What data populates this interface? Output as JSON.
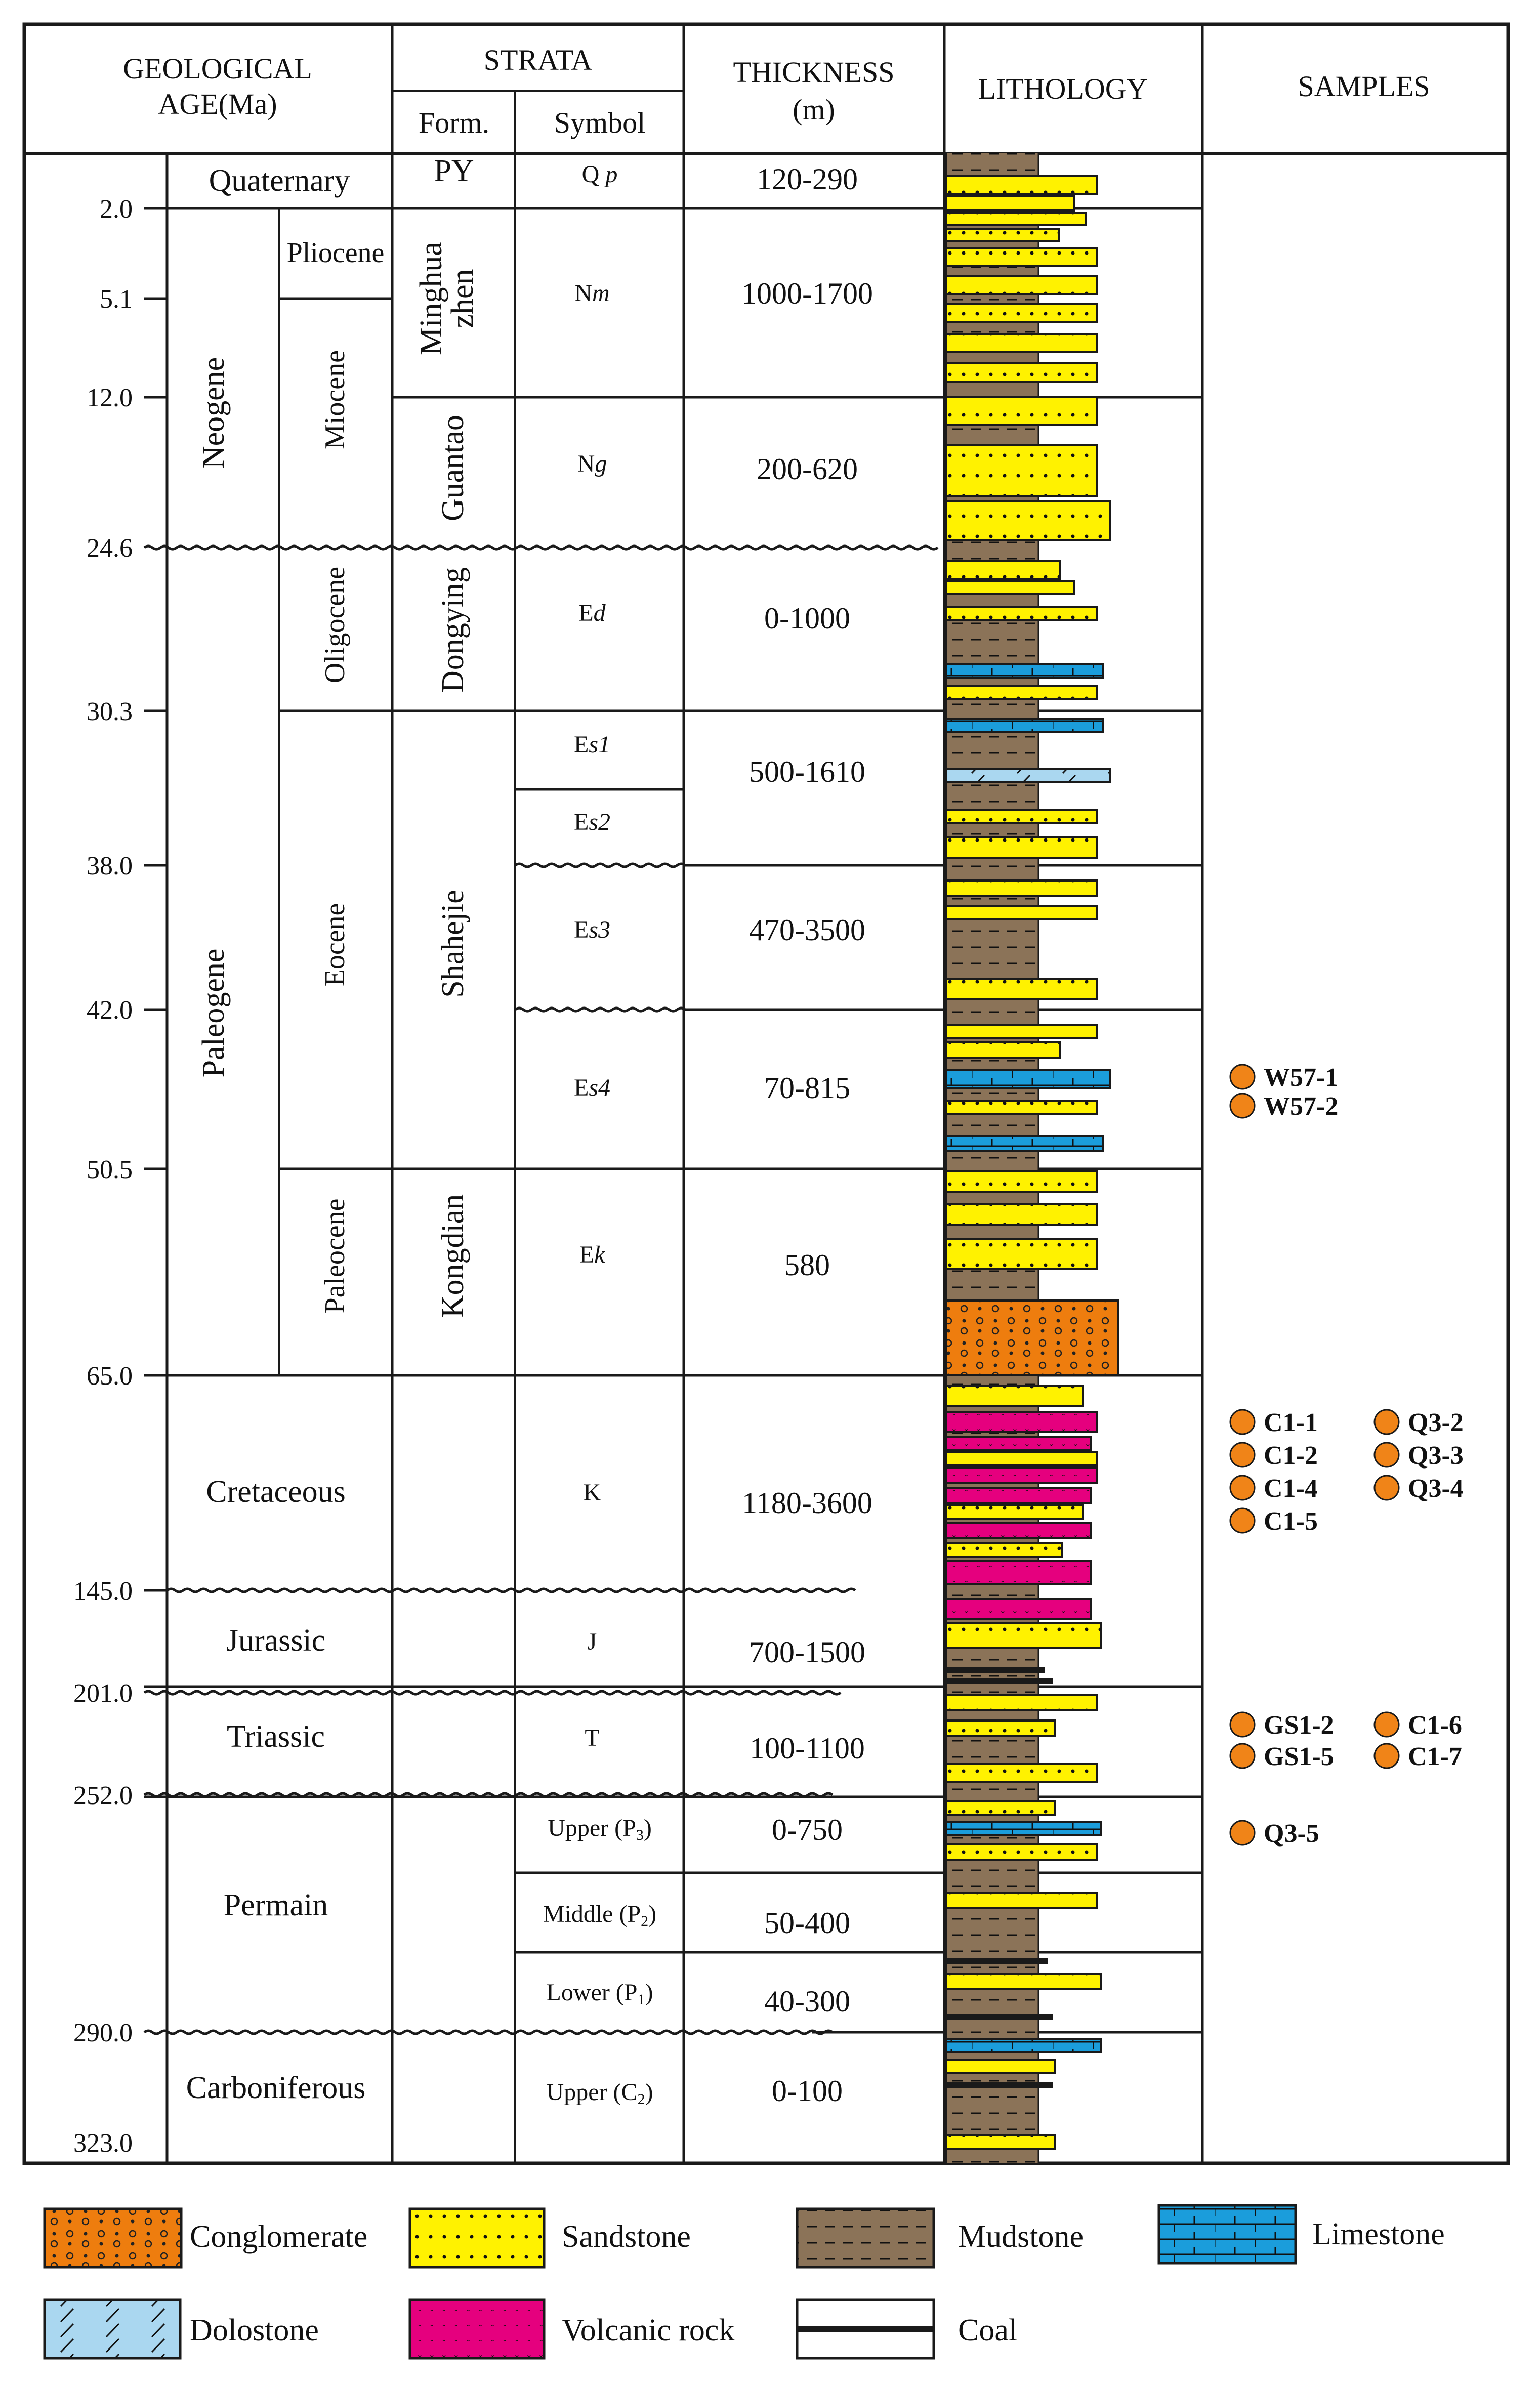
{
  "headers": {
    "geological_age_line1": "GEOLOGICAL",
    "geological_age_line2": "AGE(Ma)",
    "strata": "STRATA",
    "form": "Form.",
    "symbol": "Symbol",
    "thickness_line1": "THICKNESS",
    "thickness_line2": "(m)",
    "lithology": "LITHOLOGY",
    "samples": "SAMPLES"
  },
  "ages": [
    "2.0",
    "5.1",
    "12.0",
    "24.6",
    "30.3",
    "38.0",
    "42.0",
    "50.5",
    "65.0",
    "145.0",
    "201.0",
    "252.0",
    "290.0",
    "323.0"
  ],
  "periods": {
    "quaternary": "Quaternary",
    "neogene": "Neogene",
    "paleogene": "Paleogene",
    "cretaceous": "Cretaceous",
    "jurassic": "Jurassic",
    "triassic": "Triassic",
    "permain": "Permain",
    "carboniferous": "Carboniferous"
  },
  "epochs": {
    "pliocene": "Pliocene",
    "miocene": "Miocene",
    "oligocene": "Oligocene",
    "eocene": "Eocene",
    "paleocene": "Paleocene"
  },
  "formations": {
    "py": "PY",
    "minghuazhen_1": "Minghua",
    "minghuazhen_2": "zhen",
    "guantao": "Guantao",
    "dongying": "Dongying",
    "shahejie": "Shahejie",
    "kongdian": "Kongdian"
  },
  "symbols": {
    "qp_main": "Q",
    "qp_sub": "p",
    "nm_main": "N",
    "nm_sub": "m",
    "ng_main": "N",
    "ng_sub": "g",
    "ed_main": "E",
    "ed_sub": "d",
    "es1_main": "E",
    "es1_sub": "s1",
    "es2_main": "E",
    "es2_sub": "s2",
    "es3_main": "E",
    "es3_sub": "s3",
    "es4_main": "E",
    "es4_sub": "s4",
    "ek_main": "E",
    "ek_sub": "k",
    "k": "K",
    "j": "J",
    "t": "T",
    "p3_main": "Upper (P",
    "p3_sub": "3",
    "p2_main": "Middle (P",
    "p2_sub": "2",
    "p1_main": "Lower (P",
    "p1_sub": "1",
    "c2_main": "Upper (C",
    "c2_sub": "2",
    "close_paren": ")"
  },
  "thickness": {
    "qp": "120-290",
    "nm": "1000-1700",
    "ng": "200-620",
    "ed": "0-1000",
    "es12": "500-1610",
    "es3": "470-3500",
    "es4": "70-815",
    "ek": "580",
    "k": "1180-3600",
    "j": "700-1500",
    "t": "100-1100",
    "p3": "0-750",
    "p2": "50-400",
    "p1": "40-300",
    "c2": "0-100"
  },
  "samples": [
    "W57-1",
    "W57-2",
    "C1-1",
    "C1-2",
    "C1-4",
    "C1-5",
    "Q3-2",
    "Q3-3",
    "Q3-4",
    "GS1-2",
    "GS1-5",
    "C1-6",
    "C1-7",
    "Q3-5"
  ],
  "legend": [
    "Conglomerate",
    "Sandstone",
    "Mudstone",
    "Limestone",
    "Dolostone",
    "Volcanic rock",
    "Coal"
  ],
  "colors": {
    "conglomerate": "#ee7d0e",
    "sandstone": "#fff200",
    "mudstone": "#8b7358",
    "limestone": "#1b9ddb",
    "dolostone": "#aad7f0",
    "volcanic": "#e5007e",
    "coal": "#1a1a1a",
    "sample_dot": "#f08418",
    "line": "#1a1a1a"
  }
}
